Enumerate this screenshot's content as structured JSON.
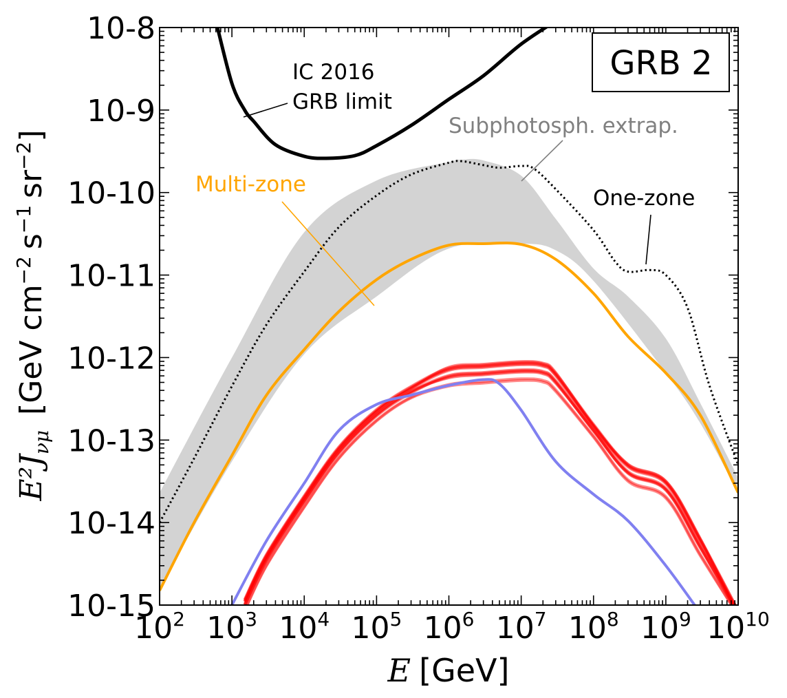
{
  "chart_data": {
    "type": "line",
    "panel_label": "GRB 2",
    "xlabel_symbol": "E",
    "xlabel_unit": "[GeV]",
    "ylabel_symbol": "E²J",
    "ylabel_sub": "νμ",
    "ylabel_unit": "[GeV cm",
    "ylabel_unit2": "s",
    "ylabel_unit3": "sr",
    "ylabel_close": "]",
    "ylabel_exp1": "−2",
    "ylabel_exp2": "−1",
    "ylabel_exp3": "−2",
    "x_scale": "log",
    "y_scale": "log",
    "xlim": [
      100,
      10000000000
    ],
    "ylim": [
      1e-15,
      1e-08
    ],
    "x_ticks": [
      {
        "value": 100,
        "base": "10",
        "exp": "2"
      },
      {
        "value": 1000,
        "base": "10",
        "exp": "3"
      },
      {
        "value": 10000,
        "base": "10",
        "exp": "4"
      },
      {
        "value": 100000,
        "base": "10",
        "exp": "5"
      },
      {
        "value": 1000000,
        "base": "10",
        "exp": "6"
      },
      {
        "value": 10000000,
        "base": "10",
        "exp": "7"
      },
      {
        "value": 100000000,
        "base": "10",
        "exp": "8"
      },
      {
        "value": 1000000000,
        "base": "10",
        "exp": "9"
      },
      {
        "value": 10000000000,
        "base": "10",
        "exp": "10"
      }
    ],
    "y_ticks": [
      {
        "value": 1e-15,
        "label": "10-15"
      },
      {
        "value": 1e-14,
        "label": "10-14"
      },
      {
        "value": 1e-13,
        "label": "10-13"
      },
      {
        "value": 1e-12,
        "label": "10-12"
      },
      {
        "value": 1e-11,
        "label": "10-11"
      },
      {
        "value": 1e-10,
        "label": "10-10"
      },
      {
        "value": 1e-09,
        "label": "10-9"
      },
      {
        "value": 1e-08,
        "label": "10-8"
      }
    ],
    "annotations": {
      "ic_limit_line1": "IC 2016",
      "ic_limit_line2": "GRB limit",
      "subphotosph": "Subphotosph. extrap.",
      "multi_zone": "Multi-zone",
      "one_zone": "One-zone"
    },
    "colors": {
      "ic_limit": "#000000",
      "band": "#d3d3d3",
      "one_zone": "#000000",
      "multi_zone": "#ffa500",
      "red_curves": "#ff0000",
      "blue_curve": "#8080f0",
      "subphotosph_text": "#808080"
    },
    "series": [
      {
        "style": "solid-black",
        "x": [
          600,
          1000,
          1500,
          2000,
          4000,
          10000,
          20000,
          50000,
          100000,
          300000,
          1000000,
          3000000,
          10000000,
          30000000
        ],
        "y": [
          1.2e-08,
          2.1e-09,
          1e-09,
          7.3e-10,
          3.8e-10,
          2.75e-10,
          2.6e-10,
          2.8e-10,
          3.7e-10,
          6.5e-10,
          1.35e-09,
          2.6e-09,
          6.3e-09,
          1.2e-08
        ]
      },
      {
        "style": "band",
        "x_upper": [
          100,
          1000,
          10000,
          100000,
          1000000,
          1500000,
          3000000,
          10000000,
          30000000,
          100000000,
          300000000,
          1000000000,
          3000000000,
          10000000000
        ],
        "y_upper": [
          2.3e-14,
          1e-12,
          3.3e-11,
          1.4e-10,
          2.35e-10,
          2.5e-10,
          2.45e-10,
          1.6e-10,
          4.8e-11,
          1.2e-11,
          5.5e-12,
          1.7e-12,
          2.8e-13,
          3.5e-14
        ],
        "x_lower": [
          100,
          1000,
          10000,
          100000,
          1000000,
          10000000,
          30000000,
          100000000,
          1000000000,
          3000000000,
          10000000000
        ],
        "y_lower": [
          1.6e-15,
          5.5e-14,
          1.1e-12,
          5.5e-12,
          2.1e-11,
          2.4e-11,
          2e-11,
          8.5e-12,
          6.5e-13,
          1.6e-13,
          2.3e-14
        ]
      },
      {
        "style": "dotted-black",
        "x": [
          100,
          300,
          1000,
          3000,
          10000,
          30000,
          100000,
          300000,
          1000000,
          1500000,
          3000000,
          5000000,
          10000000,
          15000000,
          30000000,
          100000000,
          200000000,
          300000000,
          600000000,
          1000000000,
          2000000000,
          4000000000,
          10000000000
        ],
        "y": [
          1e-14,
          6e-14,
          4.5e-13,
          2.5e-12,
          1.1e-11,
          3.8e-11,
          9.2e-11,
          1.65e-10,
          2.3e-10,
          2.4e-10,
          2.15e-10,
          2e-10,
          2.1e-10,
          1.95e-10,
          1.1e-10,
          3.5e-11,
          1.45e-11,
          1.1e-11,
          1.15e-11,
          1e-11,
          4e-12,
          4.6e-13,
          5e-14
        ]
      },
      {
        "style": "solid-orange",
        "x": [
          100,
          300,
          1000,
          3000,
          10000,
          30000,
          100000,
          300000,
          1000000,
          3000000,
          10000000,
          30000000,
          100000000,
          300000000,
          1000000000,
          3000000000,
          10000000000
        ],
        "y": [
          1.5e-15,
          1e-14,
          6.5e-14,
          3.5e-13,
          1.25e-12,
          3.6e-12,
          8.8e-12,
          1.55e-11,
          2.3e-11,
          2.4e-11,
          2.35e-11,
          1.55e-11,
          6e-12,
          1.8e-12,
          6.5e-13,
          2e-13,
          2.3e-14
        ]
      },
      {
        "style": "solid-blue",
        "x": [
          1000,
          3000,
          10000,
          30000,
          100000,
          300000,
          1000000,
          3000000,
          5000000,
          10000000,
          30000000,
          100000000,
          300000000,
          1000000000,
          3000000000
        ],
        "y": [
          1e-15,
          6e-15,
          3e-14,
          1.3e-13,
          2.7e-13,
          3.5e-13,
          4.6e-13,
          5.4e-13,
          4.8e-13,
          2.3e-13,
          5.5e-14,
          2.2e-14,
          1.05e-14,
          3e-15,
          8e-16
        ]
      },
      {
        "style": "red-bundle",
        "x": [
          1500,
          3000,
          10000,
          30000,
          100000,
          300000,
          1000000,
          3000000,
          10000000,
          20000000,
          30000000,
          100000000,
          300000000,
          1000000000,
          3000000000,
          10000000000
        ],
        "y_center": [
          1e-15,
          3.5e-15,
          1.8e-14,
          7e-14,
          2e-13,
          3.8e-13,
          5.8e-13,
          6.3e-13,
          6.8e-13,
          6.5e-13,
          5e-13,
          1.3e-13,
          4e-14,
          2.5e-14,
          5e-15,
          8e-16
        ],
        "spread_dex": [
          0.15,
          0.1,
          0.08,
          0.04,
          0.0,
          -0.04,
          -0.08,
          0.08,
          0.06,
          -0.06,
          0.02
        ]
      }
    ]
  }
}
